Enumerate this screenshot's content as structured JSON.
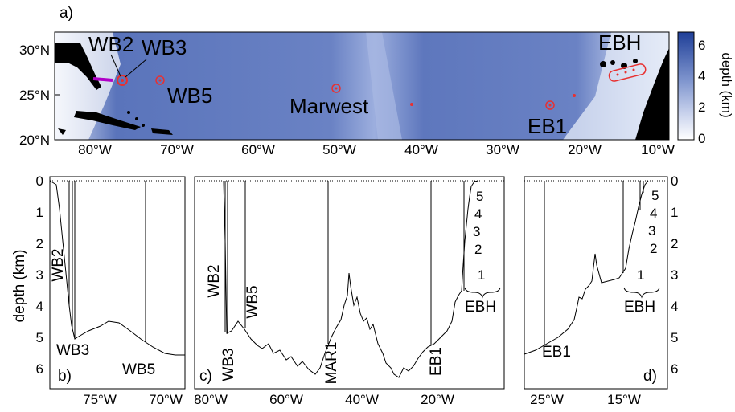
{
  "panel_a": {
    "label": "a)",
    "lat_ticks": [
      "30°N",
      "25°N",
      "20°N"
    ],
    "lon_ticks": [
      "80°W",
      "70°W",
      "60°W",
      "50°W",
      "40°W",
      "30°W",
      "20°W",
      "10°W"
    ],
    "stations": [
      "WB2",
      "WB3",
      "WB5",
      "Marwest",
      "EB1",
      "EBH"
    ],
    "colorbar": {
      "title": "depth (km)",
      "ticks": [
        "6",
        "4",
        "2",
        "0"
      ],
      "range": [
        0,
        7
      ]
    },
    "colors": {
      "deep": "#2a4fa0",
      "mid": "#6e87c6",
      "shallow": "#ffffff",
      "land": "#000000",
      "marker": "#e83030",
      "transect": "#b000c8"
    }
  },
  "panel_b": {
    "label": "b)",
    "x_ticks": [
      "75°W",
      "70°W"
    ],
    "mooring_labels": [
      "WB2",
      "WB3",
      "WB5"
    ]
  },
  "panel_c": {
    "label": "c)",
    "x_ticks": [
      "80°W",
      "60°W",
      "40°W",
      "20°W"
    ],
    "mooring_labels": [
      "WB2",
      "WB5",
      "WB3",
      "MAR1",
      "EB1"
    ],
    "ebh_numbers": [
      "5",
      "4",
      "3",
      "2",
      "1"
    ],
    "group_label": "EBH"
  },
  "panel_d": {
    "label": "d)",
    "x_ticks": [
      "25°W",
      "15°W"
    ],
    "mooring_labels": [
      "EB1"
    ],
    "ebh_numbers": [
      "5",
      "4",
      "3",
      "2",
      "1"
    ],
    "group_label": "EBH"
  },
  "depth_axis": {
    "label": "depth (km)",
    "ticks": [
      "0",
      "1",
      "2",
      "3",
      "4",
      "5",
      "6"
    ]
  }
}
